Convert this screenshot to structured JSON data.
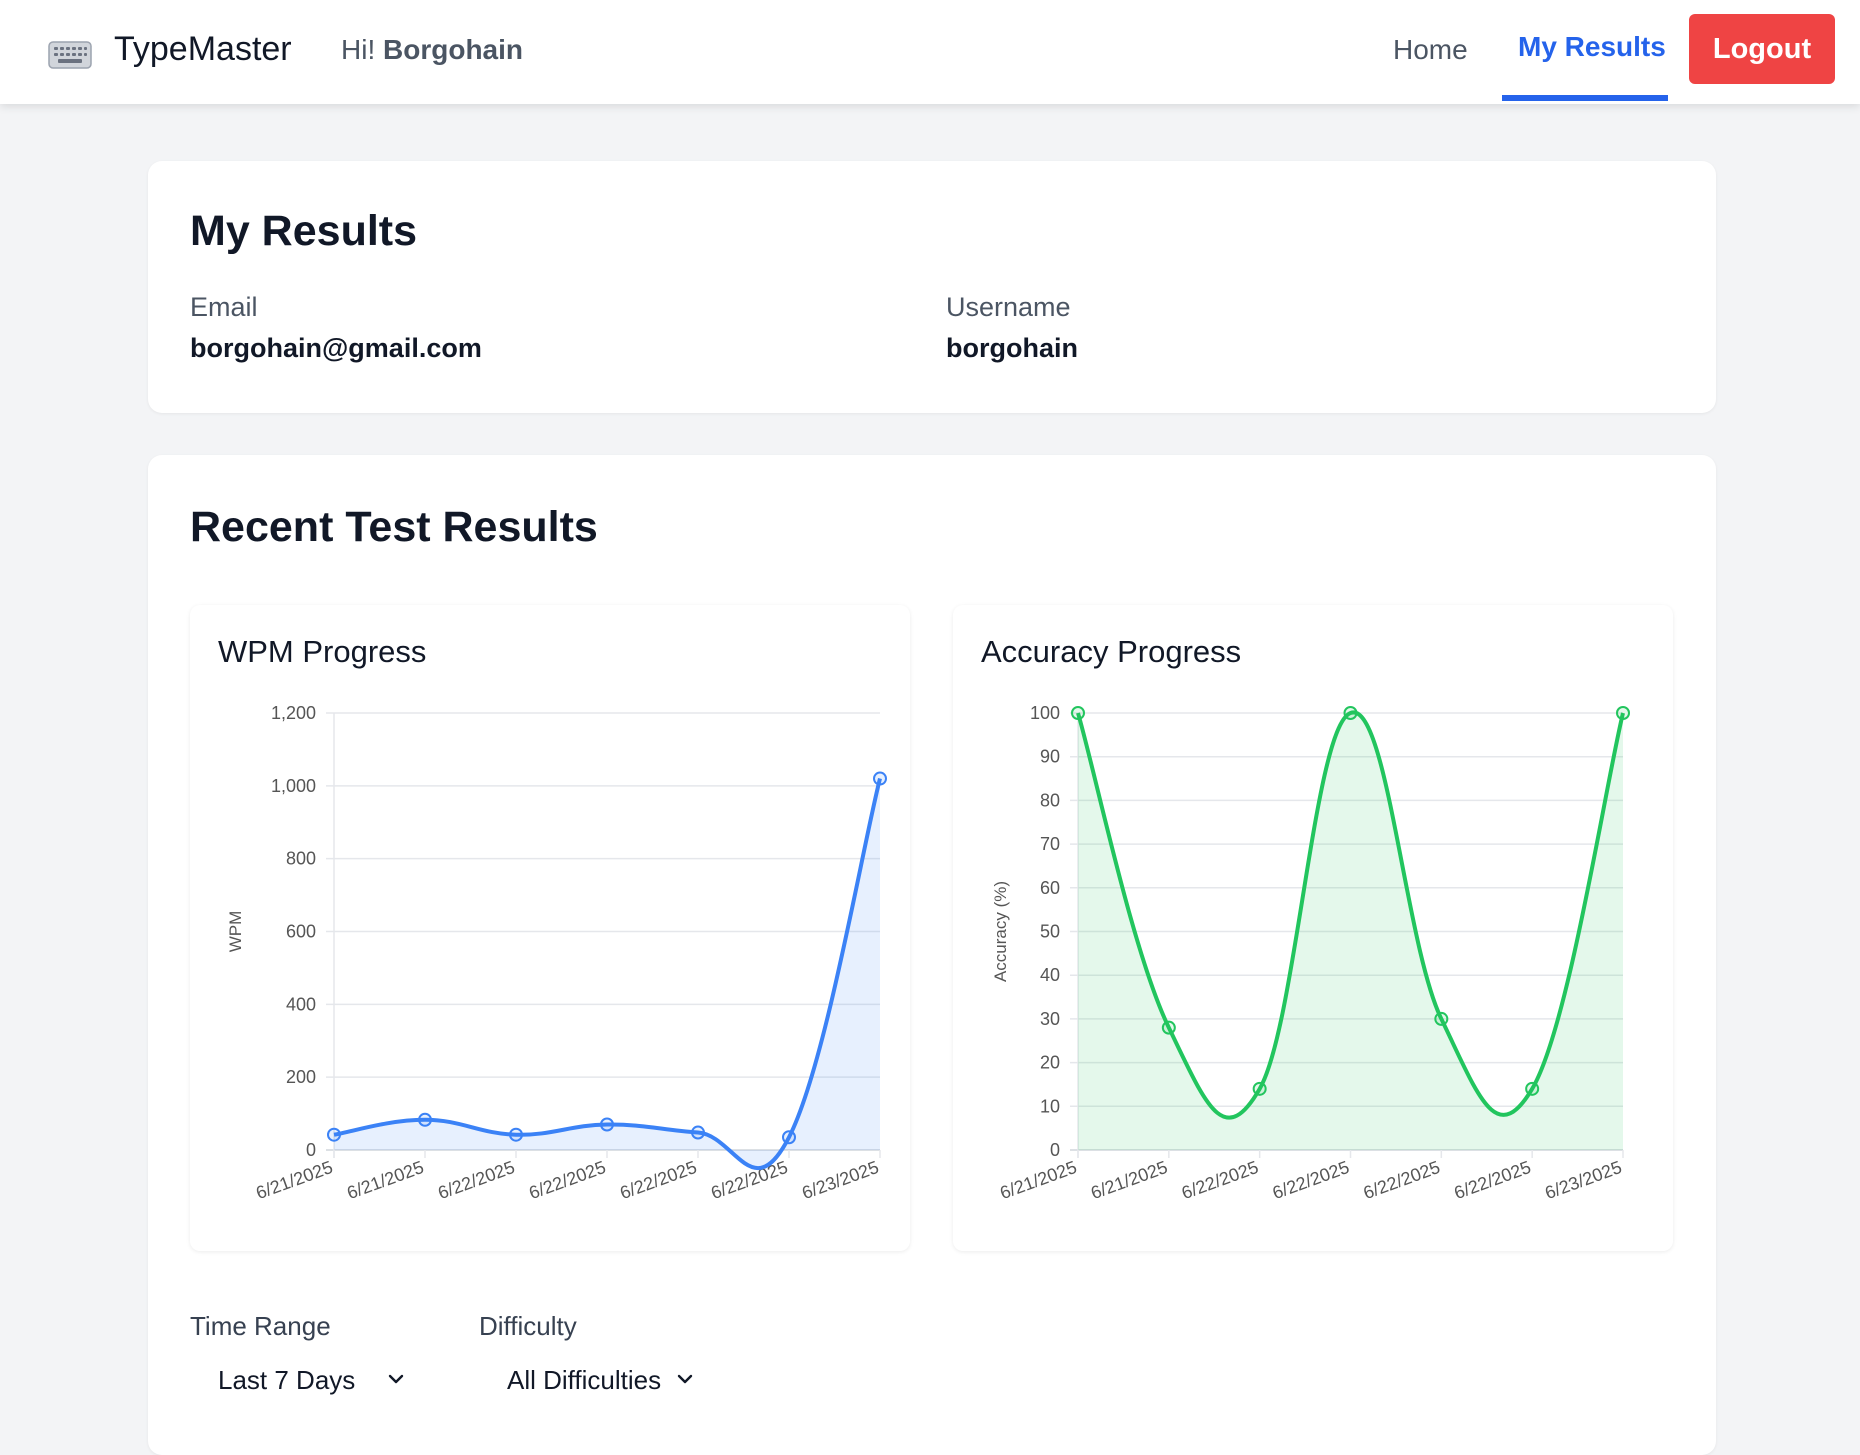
{
  "navbar": {
    "brand": "TypeMaster",
    "brand_icon": "keyboard-icon",
    "greeting_prefix": "Hi!",
    "greeting_name": "Borgohain",
    "home_label": "Home",
    "results_label": "My Results",
    "logout_label": "Logout"
  },
  "profile": {
    "title": "My Results",
    "email_label": "Email",
    "email_value": "borgohain@gmail.com",
    "username_label": "Username",
    "username_value": "borgohain"
  },
  "results": {
    "title": "Recent Test Results"
  },
  "filters": {
    "time_range_label": "Time Range",
    "time_range_value": "Last 7 Days",
    "difficulty_label": "Difficulty",
    "difficulty_value": "All Difficulties"
  },
  "colors": {
    "accent": "#2563eb",
    "logout": "#ef4444",
    "wpm_line": "#3b82f6",
    "accuracy_line": "#22c55e"
  },
  "chart_data": [
    {
      "type": "line",
      "title": "WPM Progress",
      "xlabel": "",
      "ylabel": "WPM",
      "categories": [
        "6/21/2025",
        "6/21/2025",
        "6/22/2025",
        "6/22/2025",
        "6/22/2025",
        "6/22/2025",
        "6/23/2025"
      ],
      "values": [
        42,
        83,
        42,
        70,
        48,
        35,
        1020
      ],
      "ylim": [
        0,
        1200
      ],
      "yticks": [
        0,
        200,
        400,
        600,
        800,
        1000,
        1200
      ],
      "ytick_labels": [
        "0",
        "200",
        "400",
        "600",
        "800",
        "1,000",
        "1,200"
      ],
      "fill": true,
      "grid": true
    },
    {
      "type": "line",
      "title": "Accuracy Progress",
      "xlabel": "",
      "ylabel": "Accuracy (%)",
      "categories": [
        "6/21/2025",
        "6/21/2025",
        "6/22/2025",
        "6/22/2025",
        "6/22/2025",
        "6/22/2025",
        "6/23/2025"
      ],
      "values": [
        100,
        28,
        14,
        100,
        30,
        14,
        100
      ],
      "ylim": [
        0,
        100
      ],
      "yticks": [
        0,
        10,
        20,
        30,
        40,
        50,
        60,
        70,
        80,
        90,
        100
      ],
      "ytick_labels": [
        "0",
        "10",
        "20",
        "30",
        "40",
        "50",
        "60",
        "70",
        "80",
        "90",
        "100"
      ],
      "fill": true,
      "grid": true
    }
  ]
}
